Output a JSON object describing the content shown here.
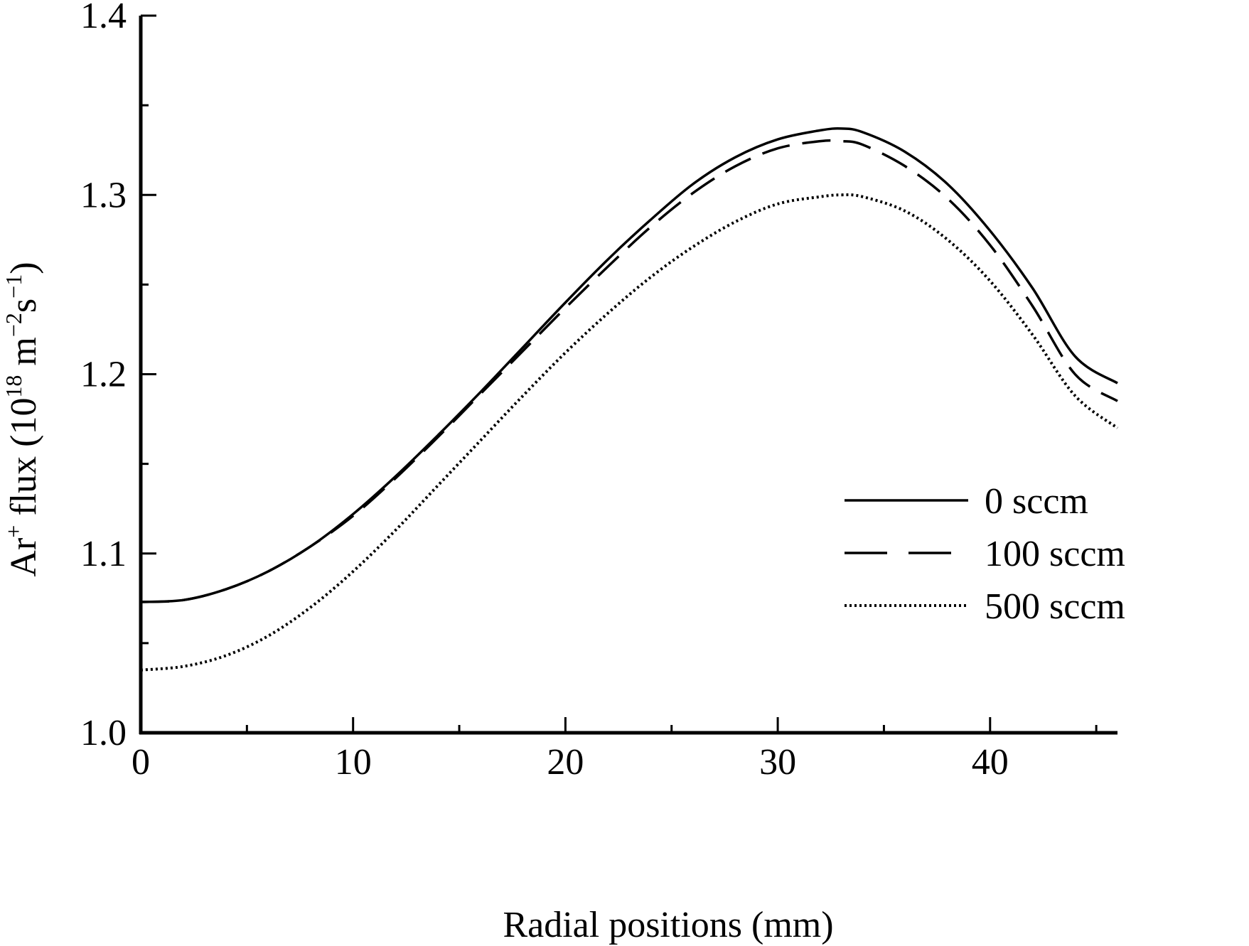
{
  "chart_data": {
    "type": "line",
    "title": "",
    "xlabel": "Radial positions (mm)",
    "ylabel": {
      "prefix": "Ar",
      "prefix_sup": "+",
      "middle": " flux (10",
      "exp1": "18",
      "unit_m": " m",
      "exp2": "−2",
      "unit_s": "s",
      "exp3": "−1",
      "suffix": ")"
    },
    "xlim": [
      0,
      46
    ],
    "ylim": [
      1.0,
      1.4
    ],
    "xticks": [
      "0",
      "10",
      "20",
      "30",
      "40"
    ],
    "xtick_values": [
      0,
      10,
      20,
      30,
      40
    ],
    "yticks": [
      "1.0",
      "1.1",
      "1.2",
      "1.3",
      "1.4"
    ],
    "ytick_values": [
      1.0,
      1.1,
      1.2,
      1.3,
      1.4
    ],
    "grid": false,
    "legend_position": "lower-right",
    "x": [
      0,
      2,
      4,
      6,
      8,
      10,
      12,
      14,
      16,
      18,
      20,
      22,
      24,
      26,
      28,
      30,
      32,
      33,
      34,
      36,
      38,
      40,
      42,
      44,
      46
    ],
    "series": [
      {
        "name": "0 sccm",
        "style": "solid",
        "values": [
          1.073,
          1.074,
          1.08,
          1.09,
          1.104,
          1.122,
          1.143,
          1.166,
          1.19,
          1.215,
          1.24,
          1.264,
          1.286,
          1.306,
          1.321,
          1.331,
          1.336,
          1.337,
          1.335,
          1.324,
          1.306,
          1.28,
          1.248,
          1.21,
          1.195
        ]
      },
      {
        "name": "100 sccm",
        "style": "dashed",
        "values": [
          1.073,
          1.074,
          1.08,
          1.09,
          1.104,
          1.121,
          1.142,
          1.165,
          1.189,
          1.213,
          1.237,
          1.26,
          1.282,
          1.301,
          1.316,
          1.326,
          1.33,
          1.33,
          1.328,
          1.316,
          1.298,
          1.272,
          1.238,
          1.2,
          1.185
        ]
      },
      {
        "name": "500 sccm",
        "style": "dotted",
        "values": [
          1.035,
          1.037,
          1.043,
          1.054,
          1.07,
          1.09,
          1.113,
          1.138,
          1.163,
          1.188,
          1.212,
          1.234,
          1.254,
          1.271,
          1.285,
          1.295,
          1.299,
          1.3,
          1.299,
          1.291,
          1.275,
          1.252,
          1.222,
          1.188,
          1.17
        ]
      }
    ]
  }
}
